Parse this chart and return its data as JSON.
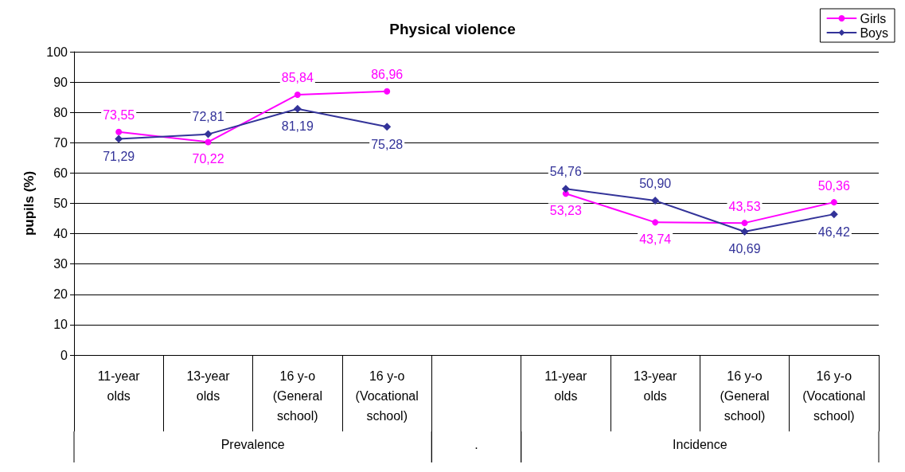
{
  "chart_data": {
    "type": "line",
    "title": "Physical violence",
    "ylabel": "pupils (%)",
    "categories": [
      "11-year\nolds",
      "13-year\nolds",
      "16 y-o\n(General\nschool)",
      "16 y-o\n(Vocational\nschool)",
      null,
      "11-year\nolds",
      "13-year\nolds",
      "16 y-o\n(General\nschool)",
      "16 y-o\n(Vocational\nschool)"
    ],
    "annotations": [
      "Prevalence",
      ".",
      "Incidence"
    ],
    "series": [
      {
        "name": "Girls",
        "color": "#ff00ff",
        "marker": "circle",
        "values": [
          73.55,
          70.22,
          85.84,
          86.96,
          null,
          53.23,
          43.74,
          43.53,
          50.36
        ],
        "value_labels": [
          "73,55",
          "70,22",
          "85,84",
          "86,96",
          null,
          "53,23",
          "43,74",
          "43,53",
          "50,36"
        ]
      },
      {
        "name": "Boys",
        "color": "#333399",
        "marker": "diamond",
        "values": [
          71.29,
          72.81,
          81.19,
          75.28,
          null,
          54.76,
          50.9,
          40.69,
          46.42
        ],
        "value_labels": [
          "71,29",
          "72,81",
          "81,19",
          "75,28",
          null,
          "54,76",
          "50,90",
          "40,69",
          "46,42"
        ]
      }
    ],
    "ylim": [
      0,
      100
    ],
    "yticks": [
      0,
      10,
      20,
      30,
      40,
      50,
      60,
      70,
      80,
      90,
      100
    ],
    "grid": "y",
    "legend": "top right"
  }
}
